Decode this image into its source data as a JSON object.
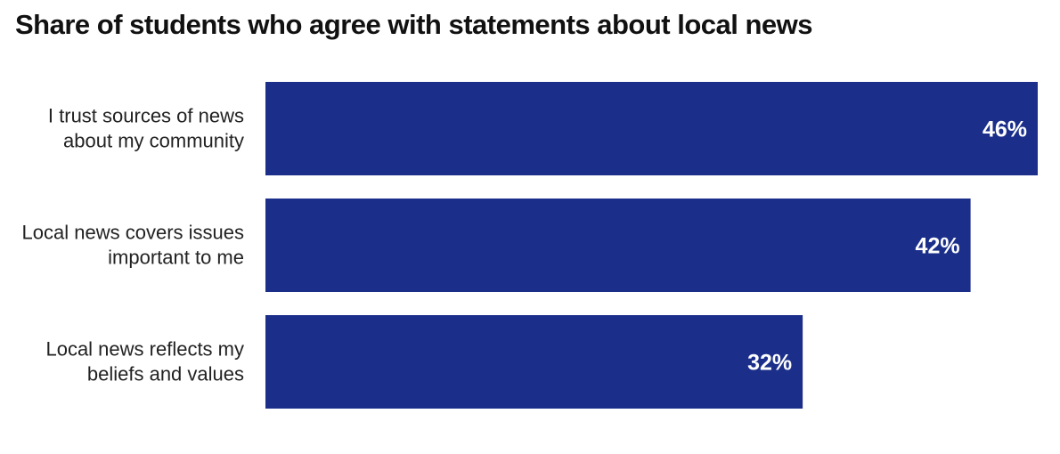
{
  "chart_data": {
    "type": "bar",
    "orientation": "horizontal",
    "title": "Share of students who agree with statements about local news",
    "categories": [
      [
        "I trust sources of news",
        "about my community"
      ],
      [
        "Local news covers issues",
        "important to me"
      ],
      [
        "Local news reflects my",
        "beliefs and values"
      ]
    ],
    "values": [
      46,
      42,
      32
    ],
    "value_labels": [
      "46%",
      "42%",
      "32%"
    ],
    "unit": "%",
    "xlim": [
      0,
      46
    ],
    "grid": false,
    "legend": "none",
    "colors": {
      "bar": "#1b2f8a",
      "value_label": "#ffffff",
      "category_label": "#222222"
    }
  }
}
